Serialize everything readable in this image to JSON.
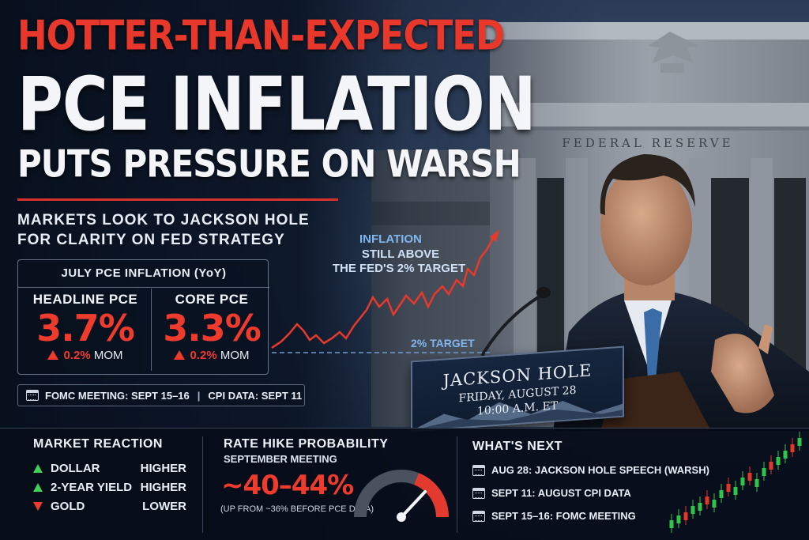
{
  "headline": {
    "line1": "HOTTER-THAN-EXPECTED",
    "line2": "PCE INFLATION",
    "line3": "PUTS PRESSURE ON WARSH"
  },
  "subheadline": {
    "line1": "MARKETS LOOK TO JACKSON HOLE",
    "line2": "FOR CLARITY ON FED STRATEGY"
  },
  "building_inscription": "FEDERAL RESERVE",
  "pce_box": {
    "title": "JULY PCE INFLATION (YoY)",
    "headline": {
      "label": "HEADLINE PCE",
      "value": "3.7%",
      "change_value": "0.2%",
      "change_unit": "MOM"
    },
    "core": {
      "label": "CORE PCE",
      "value": "3.3%",
      "change_value": "0.2%",
      "change_unit": "MOM"
    }
  },
  "dates_bar": {
    "fomc": "FOMC MEETING: SEPT 15–16",
    "separator": "|",
    "cpi": "CPI DATA: SEPT 11"
  },
  "chart_annotation": {
    "line1": "INFLATION",
    "line2": "STILL ABOVE",
    "line3": "THE FED'S 2% TARGET",
    "target_label": "2% TARGET"
  },
  "podium_sign": {
    "title": "JACKSON HOLE",
    "date": "FRIDAY, AUGUST 28",
    "time": "10:00 A.M. ET"
  },
  "market_reaction": {
    "title": "MARKET REACTION",
    "rows": [
      {
        "asset": "DOLLAR",
        "direction": "up",
        "result": "HIGHER"
      },
      {
        "asset": "2-YEAR YIELD",
        "direction": "up",
        "result": "HIGHER"
      },
      {
        "asset": "GOLD",
        "direction": "down",
        "result": "LOWER"
      }
    ]
  },
  "rate_hike": {
    "title": "RATE HIKE PROBABILITY",
    "subtitle": "SEPTEMBER MEETING",
    "value": "~40–44%",
    "note": "(UP FROM ~36% BEFORE PCE DATA)",
    "gauge_level": 0.42
  },
  "whats_next": {
    "title": "WHAT'S NEXT",
    "items": [
      "AUG 28: JACKSON HOLE SPEECH (WARSH)",
      "SEPT 11: AUGUST CPI DATA",
      "SEPT 15–16: FOMC MEETING"
    ]
  },
  "colors": {
    "accent_red": "#ef3b2e",
    "up_green": "#3fcf5a",
    "annotation_blue": "#7fb6ef",
    "panel_bg": "#060c18"
  }
}
